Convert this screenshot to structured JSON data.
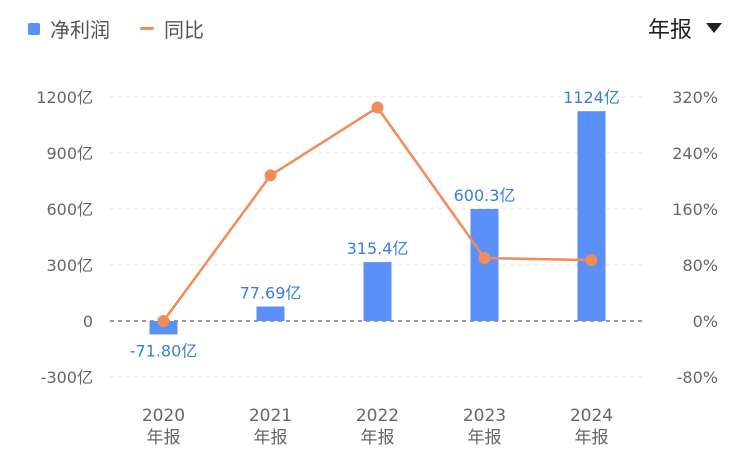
{
  "legend": {
    "bar_label": "净利润",
    "line_label": "同比"
  },
  "period_selector": {
    "label": "年报",
    "icon": "caret-down-icon"
  },
  "colors": {
    "bar": "#5b8ff9",
    "line": "#f08b5a",
    "label": "#3b7ddd"
  },
  "chart_data": {
    "type": "bar",
    "categories": [
      "2020\n年报",
      "2021\n年报",
      "2022\n年报",
      "2023\n年报",
      "2024\n年报"
    ],
    "category_lines": [
      [
        "2020",
        "年报"
      ],
      [
        "2021",
        "年报"
      ],
      [
        "2022",
        "年报"
      ],
      [
        "2023",
        "年报"
      ],
      [
        "2024",
        "年报"
      ]
    ],
    "series": [
      {
        "name": "净利润",
        "type": "bar",
        "axis": "left",
        "values": [
          -71.8,
          77.69,
          315.4,
          600.3,
          1124
        ],
        "labels": [
          "-71.80亿",
          "77.69亿",
          "315.4亿",
          "600.3亿",
          "1124亿"
        ]
      },
      {
        "name": "同比",
        "type": "line",
        "axis": "right",
        "values": [
          0,
          208,
          305,
          90,
          87
        ]
      }
    ],
    "y_left": {
      "ticks": [
        1200,
        900,
        600,
        300,
        0,
        -300
      ],
      "tick_labels": [
        "1200亿",
        "900亿",
        "600亿",
        "300亿",
        "0",
        "-300亿"
      ],
      "ylim": [
        -300,
        1200
      ]
    },
    "y_right": {
      "ticks": [
        320,
        240,
        160,
        80,
        0,
        -80
      ],
      "tick_labels": [
        "320%",
        "240%",
        "160%",
        "80%",
        "0%",
        "-80%"
      ],
      "ylim": [
        -80,
        320
      ]
    },
    "grid": true,
    "legend_position": "top-left"
  }
}
